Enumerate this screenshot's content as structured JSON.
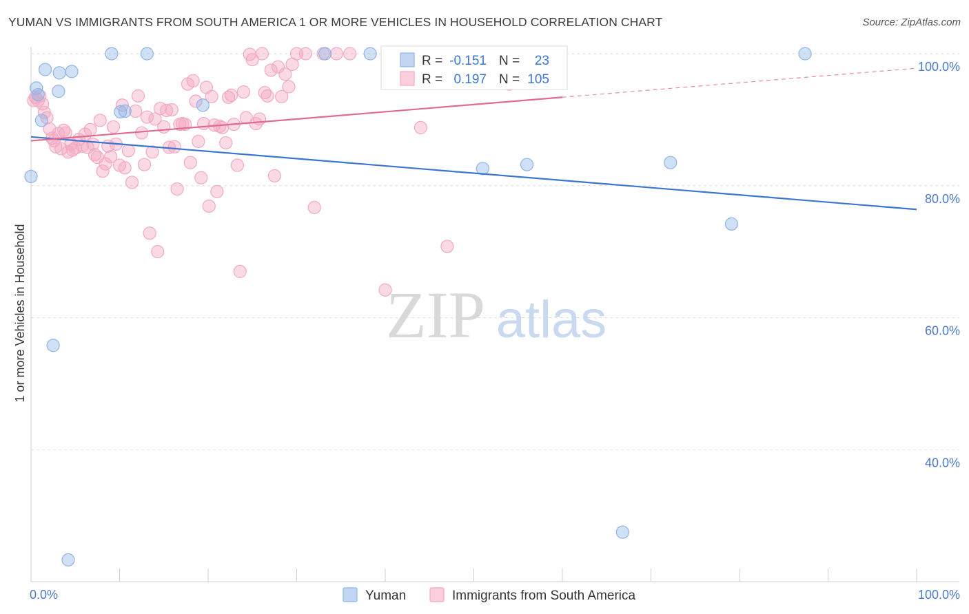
{
  "header": {
    "title": "YUMAN VS IMMIGRANTS FROM SOUTH AMERICA 1 OR MORE VEHICLES IN HOUSEHOLD CORRELATION CHART",
    "source": "Source: ZipAtlas.com"
  },
  "watermark": {
    "zip": "ZIP",
    "atlas": "atlas"
  },
  "chart_data": {
    "type": "scatter",
    "ylabel": "1 or more Vehicles in Household",
    "xlim": [
      0,
      100
    ],
    "ylim": [
      20,
      100
    ],
    "x_tick_labels": [
      "0.0%",
      "100.0%"
    ],
    "y_ticks": [
      40,
      60,
      80,
      100
    ],
    "y_tick_labels": [
      "40.0%",
      "60.0%",
      "80.0%",
      "100.0%"
    ],
    "grid": true,
    "legend_position": "top-center",
    "bottom_legend": [
      "Yuman",
      "Immigrants from South America"
    ],
    "series": [
      {
        "name": "Yuman",
        "color": "#8fb4e8",
        "line_color": "#3a76d0",
        "stats": {
          "r_label": "R =",
          "r": "-0.151",
          "n_label": "N =",
          "n": "23"
        },
        "trend": {
          "x": [
            0,
            100
          ],
          "y": [
            87.4,
            76.4
          ]
        },
        "points": [
          [
            0,
            81.4
          ],
          [
            0.6,
            94.8
          ],
          [
            0.8,
            93.8
          ],
          [
            1.2,
            89.9
          ],
          [
            1.6,
            97.6
          ],
          [
            3.1,
            94.3
          ],
          [
            3.2,
            97.1
          ],
          [
            4.6,
            97.3
          ],
          [
            2.5,
            55.8
          ],
          [
            4.2,
            23.3
          ],
          [
            9.1,
            100
          ],
          [
            13.1,
            100
          ],
          [
            10.1,
            91.2
          ],
          [
            10.6,
            91.3
          ],
          [
            19.4,
            92.2
          ],
          [
            33.2,
            100
          ],
          [
            38.3,
            100
          ],
          [
            51.0,
            82.6
          ],
          [
            56.0,
            83.2
          ],
          [
            72.2,
            83.5
          ],
          [
            79.1,
            74.2
          ],
          [
            66.8,
            27.5
          ],
          [
            87.4,
            100
          ]
        ]
      },
      {
        "name": "Immigrants from South America",
        "color": "#f4a8c2",
        "line_color": "#e06a93",
        "stats": {
          "r_label": "R =",
          "r": "0.197",
          "n_label": "N =",
          "n": "105"
        },
        "trend": {
          "x": [
            0,
            60
          ],
          "y": [
            86.8,
            93.4
          ]
        },
        "trend_dashed": {
          "x": [
            60,
            100
          ],
          "y": [
            93.4,
            97.8
          ]
        },
        "points": [
          [
            0.5,
            93.4
          ],
          [
            0.8,
            92.9
          ],
          [
            1.0,
            93.6
          ],
          [
            1.3,
            92.4
          ],
          [
            1.5,
            91.1
          ],
          [
            1.8,
            90.3
          ],
          [
            2.1,
            88.6
          ],
          [
            2.4,
            87.2
          ],
          [
            2.6,
            86.8
          ],
          [
            2.8,
            85.9
          ],
          [
            3.1,
            87.9
          ],
          [
            3.4,
            85.6
          ],
          [
            3.7,
            88.4
          ],
          [
            3.9,
            88.0
          ],
          [
            4.2,
            85.1
          ],
          [
            4.5,
            86.3
          ],
          [
            4.7,
            85.4
          ],
          [
            5.0,
            85.7
          ],
          [
            5.4,
            87.0
          ],
          [
            5.8,
            86.0
          ],
          [
            6.1,
            87.8
          ],
          [
            6.4,
            85.8
          ],
          [
            6.7,
            88.5
          ],
          [
            7.0,
            86.3
          ],
          [
            7.2,
            84.7
          ],
          [
            7.5,
            84.3
          ],
          [
            7.8,
            89.9
          ],
          [
            8.1,
            82.2
          ],
          [
            8.4,
            83.3
          ],
          [
            8.7,
            86.0
          ],
          [
            9.0,
            84.4
          ],
          [
            9.3,
            88.9
          ],
          [
            9.6,
            86.3
          ],
          [
            10.0,
            83.1
          ],
          [
            10.3,
            92.2
          ],
          [
            10.6,
            82.7
          ],
          [
            11.0,
            85.3
          ],
          [
            11.4,
            80.5
          ],
          [
            11.8,
            91.3
          ],
          [
            12.1,
            93.6
          ],
          [
            12.5,
            88.0
          ],
          [
            12.8,
            83.2
          ],
          [
            13.1,
            90.4
          ],
          [
            13.4,
            72.8
          ],
          [
            13.7,
            85.1
          ],
          [
            14.0,
            90.1
          ],
          [
            14.3,
            70.0
          ],
          [
            14.6,
            91.7
          ],
          [
            15.0,
            88.9
          ],
          [
            15.3,
            91.4
          ],
          [
            15.6,
            85.8
          ],
          [
            15.9,
            91.5
          ],
          [
            16.2,
            85.9
          ],
          [
            16.5,
            79.5
          ],
          [
            16.8,
            89.3
          ],
          [
            17.1,
            89.4
          ],
          [
            17.4,
            89.3
          ],
          [
            17.7,
            95.4
          ],
          [
            18.0,
            83.5
          ],
          [
            18.3,
            95.9
          ],
          [
            18.6,
            92.8
          ],
          [
            18.9,
            86.7
          ],
          [
            19.2,
            81.2
          ],
          [
            19.5,
            89.4
          ],
          [
            19.8,
            94.9
          ],
          [
            20.1,
            76.9
          ],
          [
            20.4,
            93.5
          ],
          [
            20.7,
            89.2
          ],
          [
            21.0,
            79.1
          ],
          [
            21.3,
            89.0
          ],
          [
            21.6,
            88.8
          ],
          [
            22.0,
            86.5
          ],
          [
            22.3,
            93.4
          ],
          [
            22.6,
            93.7
          ],
          [
            22.9,
            89.3
          ],
          [
            23.3,
            83.1
          ],
          [
            23.6,
            67.0
          ],
          [
            24.0,
            94.2
          ],
          [
            24.3,
            90.3
          ],
          [
            24.7,
            99.9
          ],
          [
            25.0,
            99.1
          ],
          [
            25.4,
            89.4
          ],
          [
            25.8,
            90.1
          ],
          [
            26.1,
            100
          ],
          [
            26.4,
            94.1
          ],
          [
            26.7,
            93.6
          ],
          [
            27.1,
            97.5
          ],
          [
            27.5,
            81.5
          ],
          [
            27.9,
            98.0
          ],
          [
            28.3,
            93.5
          ],
          [
            28.7,
            96.9
          ],
          [
            29.1,
            95.0
          ],
          [
            29.5,
            98.4
          ],
          [
            30.0,
            100
          ],
          [
            31.0,
            100
          ],
          [
            32.0,
            76.7
          ],
          [
            33.0,
            100
          ],
          [
            34.5,
            100
          ],
          [
            36.0,
            100
          ],
          [
            40.0,
            64.2
          ],
          [
            44.0,
            88.8
          ],
          [
            47.0,
            70.8
          ],
          [
            54.0,
            95.4
          ],
          [
            59.5,
            100
          ],
          [
            0.3,
            92.9
          ]
        ]
      }
    ]
  }
}
